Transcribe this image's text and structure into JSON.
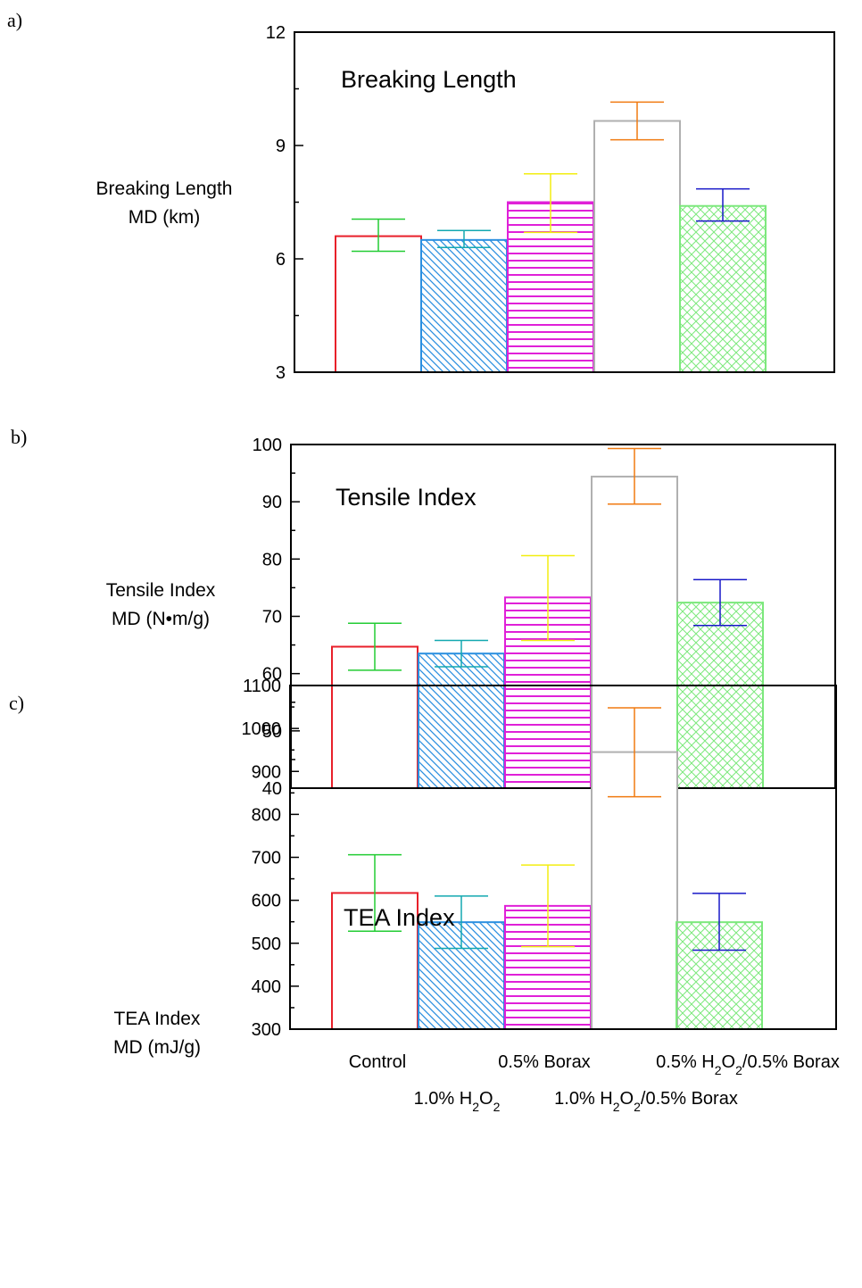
{
  "x_labels": [
    {
      "pre": "Control",
      "sub": "",
      "post": ""
    },
    {
      "pre": "1.0% H",
      "sub": "2",
      "post": "O",
      "sub2": "2",
      "post2": ""
    },
    {
      "pre": "0.5% Borax",
      "sub": "",
      "post": ""
    },
    {
      "pre": "1.0% H",
      "sub": "2",
      "post": "O",
      "sub2": "2",
      "post2": "/0.5% Borax"
    },
    {
      "pre": "0.5% H",
      "sub": "2",
      "post": "O",
      "sub2": "2",
      "post2": "/0.5% Borax"
    }
  ],
  "colors": {
    "outline": [
      "#e8202a",
      "#2b8fe0",
      "#e020d8",
      "#b0b0b0",
      "#7ce87c"
    ],
    "error": [
      "#22cc33",
      "#13a8b0",
      "#f2ee10",
      "#f07a10",
      "#1818c8"
    ],
    "axis": "#000000"
  },
  "chart_data": [
    {
      "type": "bar",
      "panel_label": "a)",
      "title": "Breaking Length",
      "ylabel_lines": [
        "Breaking Length",
        "MD (km)"
      ],
      "categories": [
        "Control",
        "1.0% H2O2",
        "0.5% Borax",
        "1.0% H2O2/0.5% Borax",
        "0.5% H2O2/0.5% Borax"
      ],
      "values": [
        6.6,
        6.5,
        7.5,
        9.65,
        7.4
      ],
      "err_low": [
        6.2,
        6.3,
        6.7,
        9.15,
        7.0
      ],
      "err_high": [
        7.05,
        6.75,
        8.25,
        10.15,
        7.85
      ],
      "ylim": [
        3,
        12
      ],
      "yticks": [
        3,
        6,
        9,
        12
      ],
      "minor_step": 1.5,
      "fill_patterns": [
        "none",
        "diagonal",
        "horizontal",
        "none",
        "crosshatch"
      ]
    },
    {
      "type": "bar",
      "panel_label": "b)",
      "title": "Tensile Index",
      "ylabel_lines": [
        "Tensile Index",
        "MD (N•m/g)"
      ],
      "categories": [
        "Control",
        "1.0% H2O2",
        "0.5% Borax",
        "1.0% H2O2/0.5% Borax",
        "0.5% H2O2/0.5% Borax"
      ],
      "values": [
        64.7,
        63.5,
        73.3,
        94.4,
        72.4
      ],
      "err_low": [
        60.6,
        61.2,
        65.8,
        89.6,
        68.4
      ],
      "err_high": [
        68.8,
        65.8,
        80.6,
        99.3,
        76.4
      ],
      "ylim": [
        40,
        100
      ],
      "yticks": [
        40,
        50,
        60,
        70,
        80,
        90,
        100
      ],
      "minor_step": 5,
      "fill_patterns": [
        "none",
        "diagonal",
        "horizontal",
        "none",
        "crosshatch"
      ]
    },
    {
      "type": "bar",
      "panel_label": "c)",
      "title": "TEA Index",
      "ylabel_lines": [
        "TEA Index",
        "MD  (mJ/g)"
      ],
      "categories": [
        "Control",
        "1.0% H2O2",
        "0.5% Borax",
        "1.0% H2O2/0.5% Borax",
        "0.5% H2O2/0.5% Borax"
      ],
      "values": [
        617,
        549,
        587,
        945,
        549
      ],
      "err_low": [
        528,
        488,
        492,
        841,
        484
      ],
      "err_high": [
        706,
        610,
        682,
        1048,
        616
      ],
      "ylim": [
        300,
        1100
      ],
      "yticks": [
        300,
        400,
        500,
        600,
        700,
        800,
        900,
        1000,
        1100
      ],
      "minor_step": 50,
      "fill_patterns": [
        "none",
        "diagonal",
        "horizontal",
        "none",
        "crosshatch"
      ]
    }
  ]
}
